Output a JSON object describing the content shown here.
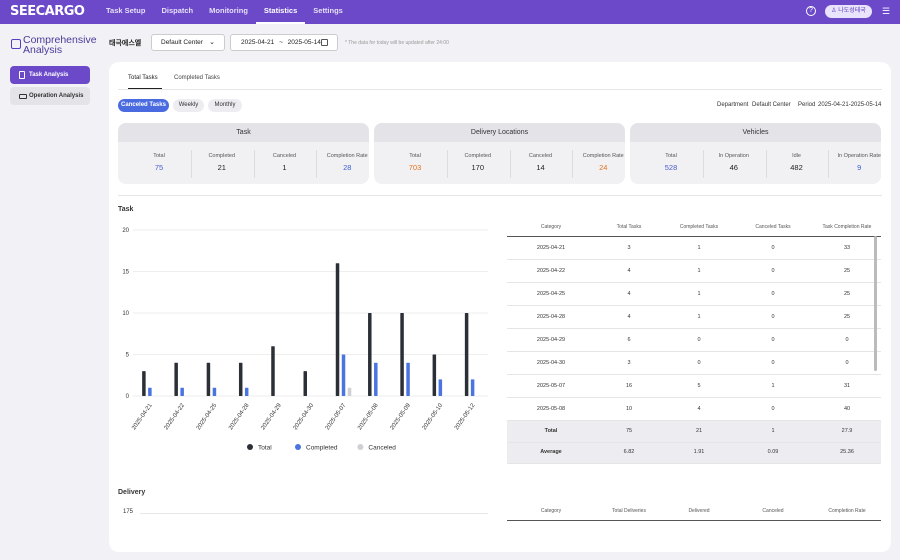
{
  "app": {
    "logo": "SEECARGO",
    "help_icon": "help-circle-icon",
    "user_label": "나도성테국",
    "menu_icon": "hamburger-icon"
  },
  "nav": [
    "Task Setup",
    "Dispatch",
    "Monitoring",
    "Statistics",
    "Settings"
  ],
  "sidebar": {
    "title": "Comprehensive Analysis",
    "items": [
      "Task Analysis",
      "Operation Analysis"
    ]
  },
  "filters": {
    "center_name": "태극에스엘",
    "dropdown_value": "Default Center",
    "date_from": "2025-04-21",
    "date_sep": "~",
    "date_to": "2025-05-14",
    "note": "* The data for today will be updated after 24:00"
  },
  "tabs": [
    "Total Tasks",
    "Completed Tasks"
  ],
  "pills": [
    "Canceled Tasks",
    "Weekly",
    "Monthly"
  ],
  "meta": {
    "department_label": "Department",
    "department_value": "Default Center",
    "period_label": "Period",
    "period_value": "2025-04-21-2025-05-14"
  },
  "summary": [
    {
      "title": "Task",
      "cols": [
        "Total",
        "Completed",
        "Canceled",
        "Completion Rate"
      ],
      "vals": [
        "75",
        "21",
        "1",
        "28"
      ],
      "colors": [
        "#4a5ccf",
        "#222",
        "#222",
        "#3b5fcf"
      ]
    },
    {
      "title": "Delivery Locations",
      "cols": [
        "Total",
        "Completed",
        "Canceled",
        "Completion Rate"
      ],
      "vals": [
        "703",
        "170",
        "14",
        "24"
      ],
      "colors": [
        "#e0731f",
        "#222",
        "#222",
        "#e0731f"
      ]
    },
    {
      "title": "Vehicles",
      "cols": [
        "Total",
        "In Operation",
        "Idle",
        "In Operation Rate"
      ],
      "vals": [
        "528",
        "46",
        "482",
        "9"
      ],
      "colors": [
        "#4a5ccf",
        "#222",
        "#222",
        "#3b5fcf"
      ]
    }
  ],
  "task_section": "Task",
  "delivery_section": "Delivery",
  "chart_data": {
    "type": "bar",
    "categories": [
      "2025-04-21",
      "2025-04-22",
      "2025-04-25",
      "2025-04-28",
      "2025-04-29",
      "2025-04-30",
      "2025-05-07",
      "2025-05-08",
      "2025-05-09",
      "2025-05-10",
      "2025-05-12"
    ],
    "series": [
      {
        "name": "Total",
        "color": "#2b2f36",
        "values": [
          3,
          4,
          4,
          4,
          6,
          3,
          16,
          10,
          10,
          5,
          10
        ]
      },
      {
        "name": "Completed",
        "color": "#4a74e0",
        "values": [
          1,
          1,
          1,
          1,
          0,
          0,
          5,
          4,
          4,
          2,
          2
        ]
      },
      {
        "name": "Canceled",
        "color": "#cfcfd4",
        "values": [
          0,
          0,
          0,
          0,
          0,
          0,
          1,
          0,
          0,
          0,
          0
        ]
      }
    ],
    "ylim": [
      0,
      20
    ],
    "yticks": [
      "20",
      "15",
      "10",
      "5",
      "0"
    ],
    "legend": "bottom"
  },
  "task_table": {
    "headers": [
      "Category",
      "Total Tasks",
      "Completed Tasks",
      "Canceled Tasks",
      "Task Completion Rate"
    ],
    "rows": [
      [
        "2025-04-21",
        "3",
        "1",
        "0",
        "33"
      ],
      [
        "2025-04-22",
        "4",
        "1",
        "0",
        "25"
      ],
      [
        "2025-04-25",
        "4",
        "1",
        "0",
        "25"
      ],
      [
        "2025-04-28",
        "4",
        "1",
        "0",
        "25"
      ],
      [
        "2025-04-29",
        "6",
        "0",
        "0",
        "0"
      ],
      [
        "2025-04-30",
        "3",
        "0",
        "0",
        "0"
      ],
      [
        "2025-05-07",
        "16",
        "5",
        "1",
        "31"
      ],
      [
        "2025-05-08",
        "10",
        "4",
        "0",
        "40"
      ],
      [
        "Total",
        "75",
        "21",
        "1",
        "27.9"
      ],
      [
        "Average",
        "6.82",
        "1.91",
        "0.09",
        "25.36"
      ]
    ]
  },
  "delivery_chart": {
    "ytick_top": "175"
  },
  "delivery_table": {
    "headers": [
      "Category",
      "Total Deliveries",
      "Delivered",
      "Canceled",
      "Completion Rate"
    ]
  }
}
